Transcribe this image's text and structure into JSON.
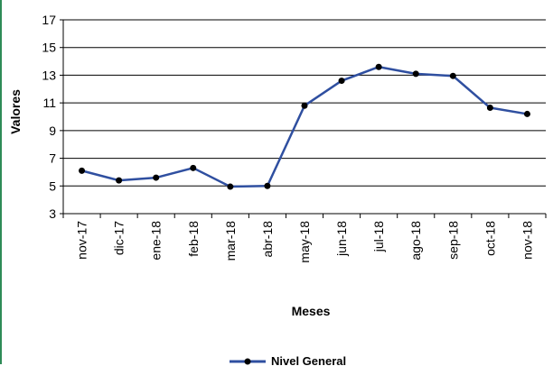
{
  "chart_data": {
    "type": "line",
    "title": "",
    "xlabel": "Meses",
    "ylabel": "Valores",
    "ylim": [
      3,
      17
    ],
    "yticks": [
      3,
      5,
      7,
      9,
      11,
      13,
      15,
      17
    ],
    "grid": true,
    "legend": "bottom-center",
    "categories": [
      "nov-17",
      "dic-17",
      "ene-18",
      "feb-18",
      "mar-18",
      "abr-18",
      "may-18",
      "jun-18",
      "jul-18",
      "ago-18",
      "sep-18",
      "oct-18",
      "nov-18"
    ],
    "series": [
      {
        "name": "Nivel General",
        "color": "#2f4fa0",
        "values": [
          6.1,
          5.4,
          5.6,
          6.3,
          4.95,
          5.0,
          10.8,
          12.6,
          13.6,
          13.1,
          12.95,
          10.65,
          10.2
        ]
      }
    ]
  }
}
